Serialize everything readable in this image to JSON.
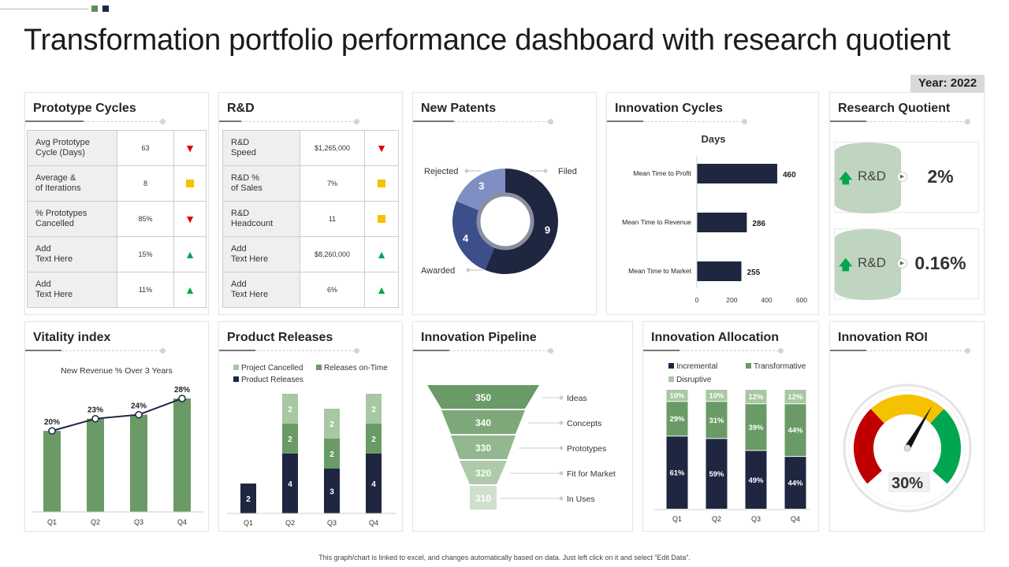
{
  "header": {
    "title": "Transformation  portfolio performance dashboard with research quotient",
    "year_label": "Year: 2022",
    "accent_squares": [
      "#5b8f5b",
      "#1f2640"
    ]
  },
  "colors": {
    "green": "#6a9a66",
    "dark_navy": "#1f2640",
    "mid_blue": "#3d4f8a",
    "light_blue": "#7f8fc4",
    "pale_green": "#a8c7a3",
    "light_green": "#bfd5bf",
    "red": "#c00000",
    "yellow": "#f5c100",
    "gauge_green": "#00a650"
  },
  "prototype_cycles": {
    "title": "Prototype Cycles",
    "rows": [
      {
        "label1": "Avg Prototype",
        "label2": "Cycle (Days)",
        "value": "63",
        "status": "down"
      },
      {
        "label1": "Average &",
        "label2": "of Iterations",
        "value": "8",
        "status": "square"
      },
      {
        "label1": "% Prototypes",
        "label2": "Cancelled",
        "value": "85%",
        "status": "down"
      },
      {
        "label1": "Add",
        "label2": "Text Here",
        "value": "15%",
        "status": "up"
      },
      {
        "label1": "Add",
        "label2": "Text Here",
        "value": "11%",
        "status": "up"
      }
    ]
  },
  "rnd": {
    "title": "R&D",
    "rows": [
      {
        "label1": "R&D",
        "label2": "Speed",
        "value": "$1,265,000",
        "status": "down"
      },
      {
        "label1": "R&D %",
        "label2": "of Sales",
        "value": "7%",
        "status": "square"
      },
      {
        "label1": "R&D",
        "label2": "Headcount",
        "value": "11",
        "status": "square"
      },
      {
        "label1": "Add",
        "label2": "Text Here",
        "value": "$8,260,000",
        "status": "up"
      },
      {
        "label1": "Add",
        "label2": "Text Here",
        "value": "6%",
        "status": "up"
      }
    ]
  },
  "new_patents": {
    "title": "New Patents"
  },
  "innovation_cycles": {
    "title": "Innovation Cycles"
  },
  "research_quotient": {
    "title": "Research Quotient",
    "items": [
      {
        "label": "R&D",
        "value": "2%",
        "arrow": "up-arrow-icon"
      },
      {
        "label": "R&D",
        "value": "0.16%",
        "arrow": "up-arrow-icon"
      }
    ]
  },
  "vitality_index": {
    "title": "Vitality index"
  },
  "product_releases": {
    "title": "Product Releases"
  },
  "innovation_pipeline": {
    "title": "Innovation Pipeline"
  },
  "innovation_allocation": {
    "title": "Innovation Allocation"
  },
  "innovation_roi": {
    "title": "Innovation ROI"
  },
  "chart_data": [
    {
      "id": "new_patents",
      "type": "pie",
      "labels": [
        "Filed",
        "Awarded",
        "Rejected"
      ],
      "values": [
        9,
        4,
        3
      ],
      "colors": [
        "#1f2640",
        "#3d4f8a",
        "#7f8fc4"
      ]
    },
    {
      "id": "innovation_cycles",
      "type": "bar",
      "orientation": "horizontal",
      "title": "Days",
      "categories": [
        "Mean Time to Profit",
        "Mean Time to Revenue",
        "Mean Time to Market"
      ],
      "values": [
        460,
        286,
        255
      ],
      "xlim": [
        0,
        600
      ],
      "xticks": [
        "0",
        "200",
        "400",
        "600"
      ]
    },
    {
      "id": "vitality_index",
      "type": "bar",
      "title": "New Revenue % Over 3 Years",
      "categories": [
        "Q1",
        "Q2",
        "Q3",
        "Q4"
      ],
      "values": [
        20,
        23,
        24,
        28
      ],
      "value_labels": [
        "20%",
        "23%",
        "24%",
        "28%"
      ],
      "overlay": "line",
      "ylim": [
        0,
        32
      ]
    },
    {
      "id": "product_releases",
      "type": "bar",
      "stacked": true,
      "categories": [
        "Q1",
        "Q2",
        "Q3",
        "Q4"
      ],
      "series": [
        {
          "name": "Product Releases",
          "values": [
            2,
            4,
            3,
            4
          ],
          "color": "#1f2640"
        },
        {
          "name": "Releases on-Time",
          "values": [
            0,
            2,
            2,
            2
          ],
          "color": "#6a9a66"
        },
        {
          "name": "Project Cancelled",
          "values": [
            0,
            2,
            2,
            2
          ],
          "color": "#a8c7a3"
        }
      ],
      "legend": [
        "Project Cancelled",
        "Releases on-Time",
        "Product Releases"
      ],
      "ylim": [
        0,
        8.6
      ]
    },
    {
      "id": "innovation_pipeline",
      "type": "funnel",
      "categories": [
        "Ideas",
        "Concepts",
        "Prototypes",
        "Fit for Market",
        "In Uses"
      ],
      "values": [
        350,
        340,
        330,
        320,
        310
      ],
      "colors": [
        "#6a9a66",
        "#7ea87a",
        "#93b78f",
        "#aecaaa",
        "#cfe0cc"
      ]
    },
    {
      "id": "innovation_allocation",
      "type": "bar",
      "stacked": true,
      "percent": true,
      "categories": [
        "Q1",
        "Q2",
        "Q3",
        "Q4"
      ],
      "series": [
        {
          "name": "Incremental",
          "values": [
            61,
            59,
            49,
            44
          ],
          "labels": [
            "61%",
            "59%",
            "49%",
            "44%"
          ],
          "color": "#1f2640"
        },
        {
          "name": "Transformative",
          "values": [
            29,
            31,
            39,
            44
          ],
          "labels": [
            "29%",
            "31%",
            "39%",
            "44%"
          ],
          "color": "#6a9a66"
        },
        {
          "name": "Disruptive",
          "values": [
            10,
            10,
            12,
            12
          ],
          "labels": [
            "10%",
            "10%",
            "12%",
            "12%"
          ],
          "color": "#a8c7a3"
        }
      ]
    },
    {
      "id": "innovation_roi",
      "type": "gauge",
      "value": 30,
      "value_label": "30%",
      "bands": [
        "#c00000",
        "#f5c100",
        "#00a650"
      ]
    }
  ],
  "footer": "This graph/chart is linked to excel, and changes automatically based on data. Just left click on it and select “Edit Data”."
}
